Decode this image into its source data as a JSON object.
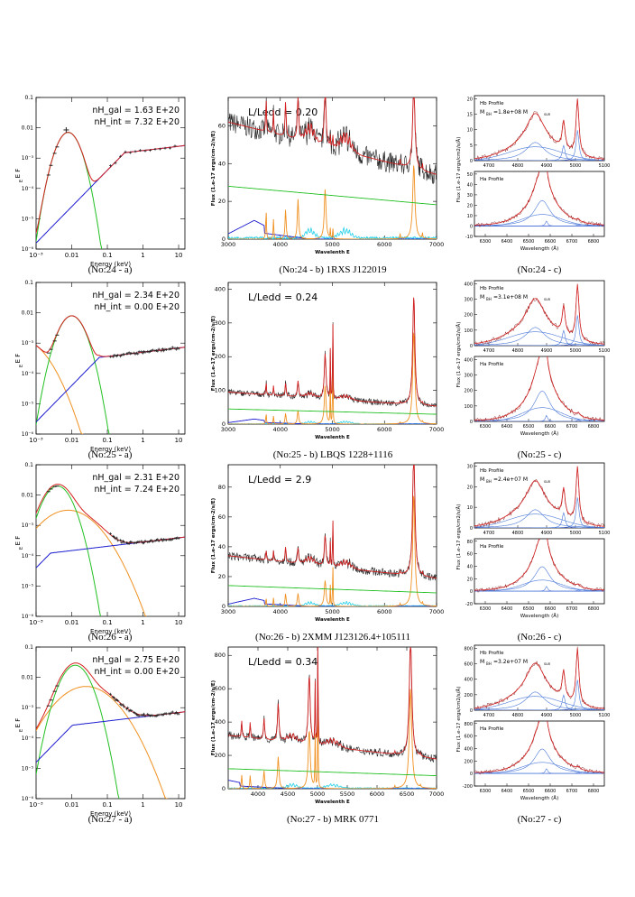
{
  "axis_labels": {
    "sed_x": "Energy (keV)",
    "sed_y": "E F",
    "sed_y_sub": "E",
    "opt_x": "Wavelenth E",
    "opt_y": "Flux (1.e-17 ergs/cm-2/s/E)",
    "zoom_x": "Wavelength (Å)",
    "zoom_y": "Flux (1.e-17 ergs/cm2/s/Å)",
    "hb_label": "Hb Profile",
    "ha_label": "Ha Profile"
  },
  "sed_ticks_x": [
    "10⁻³",
    "0.01",
    "0.1",
    "1",
    "10"
  ],
  "sed_ticks_y": [
    "10⁻⁶",
    "10⁻⁵",
    "10⁻⁴",
    "10⁻³",
    "0.01",
    "0.1"
  ],
  "opt_ticks_x_full": [
    "3000",
    "4000",
    "5000",
    "6000",
    "7000"
  ],
  "opt_ticks_x_fine": [
    "4000",
    "4500",
    "5000",
    "5500",
    "6000",
    "6500",
    "7000"
  ],
  "hb_ticks_x": [
    "4700",
    "4800",
    "4900",
    "5000",
    "5100"
  ],
  "ha_ticks_x": [
    "6300",
    "6400",
    "6500",
    "6600",
    "6700",
    "6800"
  ],
  "colors": {
    "total": "#d42020",
    "disk": "#22c022",
    "powerlaw": "#1a1ad0",
    "comptonization": "#f09020",
    "data": "#222222",
    "component": "#4a78d8",
    "feii": "#22d0e8"
  },
  "rows": [
    {
      "caption_a": "(No:24 - a)",
      "caption_b": "(No:24 - b) 1RXS J122019",
      "caption_c": "(No:24 - c)",
      "nh_gal": "nH_gal = 1.63 E+20",
      "nh_int": "nH_int = 7.32 E+20",
      "eddington": "L/Ledd  =  0.20",
      "bh_mass": "M",
      "bh_mass_value": "=1.8e+08 M",
      "opt_yticks": [
        "0",
        "20",
        "40",
        "60"
      ],
      "hb_yticks": [
        "0",
        "5",
        "10",
        "15",
        "20"
      ],
      "ha_yticks": [
        "-10",
        "0",
        "10",
        "20",
        "30",
        "40",
        "50"
      ]
    },
    {
      "caption_a": "(No:25 - a)",
      "caption_b": "(No:25 - b) LBQS 1228+1116",
      "caption_c": "(No:25 - c)",
      "nh_gal": "nH_gal = 2.34 E+20",
      "nh_int": "nH_int = 0.00 E+20",
      "eddington": "L/Ledd  =  0.24",
      "bh_mass": "M",
      "bh_mass_value": "=3.1e+08 M",
      "opt_yticks": [
        "0",
        "100",
        "200",
        "300",
        "400"
      ],
      "hb_yticks": [
        "0",
        "100",
        "200",
        "300",
        "400"
      ],
      "ha_yticks": [
        "0",
        "100",
        "200",
        "300",
        "400"
      ]
    },
    {
      "caption_a": "(No:26 - a)",
      "caption_b": "(No:26 - b) 2XMM J123126.4+105111",
      "caption_c": "(No:26 - c)",
      "nh_gal": "nH_gal = 2.31 E+20",
      "nh_int": "nH_int = 7.24 E+20",
      "eddington": "L/Ledd  =  2.9",
      "bh_mass": "M",
      "bh_mass_value": "=2.4e+07 M",
      "opt_yticks": [
        "0",
        "20",
        "40",
        "60",
        "80"
      ],
      "hb_yticks": [
        "0",
        "10",
        "20",
        "30"
      ],
      "ha_yticks": [
        "-20",
        "0",
        "20",
        "40",
        "60",
        "80"
      ]
    },
    {
      "caption_a": "(No:27 - a)",
      "caption_b": "(No:27 - b) MRK 0771",
      "caption_c": "(No:27 - c)",
      "nh_gal": "nH_gal = 2.75 E+20",
      "nh_int": "nH_int = 0.00 E+20",
      "eddington": "L/Ledd  =  0.34",
      "bh_mass": "M",
      "bh_mass_value": "=3.2e+07 M",
      "opt_yticks": [
        "0",
        "200",
        "400",
        "600",
        "800"
      ],
      "hb_yticks": [
        "0",
        "200",
        "400",
        "600",
        "800"
      ],
      "ha_yticks": [
        "-200",
        "0",
        "200",
        "400",
        "600",
        "800"
      ]
    }
  ],
  "chart_data": [
    {
      "type": "line",
      "panel": "No:24 - a",
      "xscale": "log",
      "yscale": "log",
      "xlim": [
        0.001,
        15
      ],
      "ylim": [
        1e-06,
        0.1
      ],
      "series": [
        {
          "component": "total",
          "x": [
            0.001,
            0.003,
            0.006,
            0.01,
            0.02,
            0.05,
            0.1,
            0.3,
            1,
            3,
            10
          ],
          "y": [
            0.0015,
            0.004,
            0.008,
            0.005,
            0.0015,
            0.0009,
            0.001,
            0.0012,
            0.0015,
            0.0018,
            0.0022
          ]
        },
        {
          "component": "powerlaw",
          "x": [
            0.001,
            0.01,
            0.1,
            1,
            10
          ],
          "y": [
            1e-06,
            3e-05,
            0.0003,
            0.001,
            0.0018
          ]
        },
        {
          "component": "disk",
          "x": [
            0.001,
            0.003,
            0.006,
            0.01,
            0.02,
            0.03,
            0.05
          ],
          "y": [
            0.0015,
            0.004,
            0.008,
            0.004,
            0.0003,
            1e-05,
            1e-06
          ]
        },
        {
          "component": "comptonization",
          "x": [
            0.003,
            0.01,
            0.05,
            0.2,
            0.5,
            1,
            1.5,
            2
          ],
          "y": [
            1e-06,
            1.2e-05,
            4e-05,
            8e-05,
            0.0001,
            3e-05,
            5e-06,
            1e-06
          ]
        }
      ]
    },
    {
      "type": "line",
      "panel": "No:24 - b",
      "xlim": [
        3000,
        7000
      ],
      "ylim": [
        0,
        75
      ],
      "series": [
        {
          "component": "total",
          "x": [
            3000,
            3300,
            3600,
            3900,
            4200,
            4500,
            4800,
            5200,
            5600,
            6000,
            6400,
            6560,
            6700,
            7000
          ],
          "y": [
            62,
            58,
            52,
            44,
            40,
            35,
            38,
            36,
            32,
            30,
            33,
            63,
            34,
            28
          ]
        },
        {
          "component": "disk",
          "x": [
            3000,
            4000,
            5000,
            6000,
            7000
          ],
          "y": [
            33,
            30,
            28,
            26,
            25
          ]
        },
        {
          "component": "comptonization",
          "x": [
            3000,
            3500,
            4000,
            4340,
            4861,
            5000,
            5500,
            6000,
            6400,
            6560,
            6700,
            7000
          ],
          "y": [
            2,
            3,
            2,
            10,
            12,
            4,
            1,
            2,
            5,
            43,
            5,
            2
          ]
        }
      ]
    },
    {
      "type": "line",
      "panel": "No:25 - a",
      "xscale": "log",
      "yscale": "log",
      "xlim": [
        0.001,
        15
      ],
      "ylim": [
        1e-06,
        0.1
      ]
    },
    {
      "type": "line",
      "panel": "No:25 - b",
      "xlim": [
        3000,
        7000
      ],
      "ylim": [
        0,
        420
      ]
    },
    {
      "type": "line",
      "panel": "No:26 - a",
      "xscale": "log",
      "yscale": "log",
      "xlim": [
        0.001,
        15
      ],
      "ylim": [
        1e-06,
        0.1
      ]
    },
    {
      "type": "line",
      "panel": "No:26 - b",
      "xlim": [
        3000,
        7000
      ],
      "ylim": [
        0,
        95
      ]
    },
    {
      "type": "line",
      "panel": "No:27 - a",
      "xscale": "log",
      "yscale": "log",
      "xlim": [
        0.001,
        15
      ],
      "ylim": [
        1e-06,
        0.1
      ]
    },
    {
      "type": "line",
      "panel": "No:27 - b",
      "xlim": [
        3500,
        7000
      ],
      "ylim": [
        0,
        850
      ]
    }
  ]
}
